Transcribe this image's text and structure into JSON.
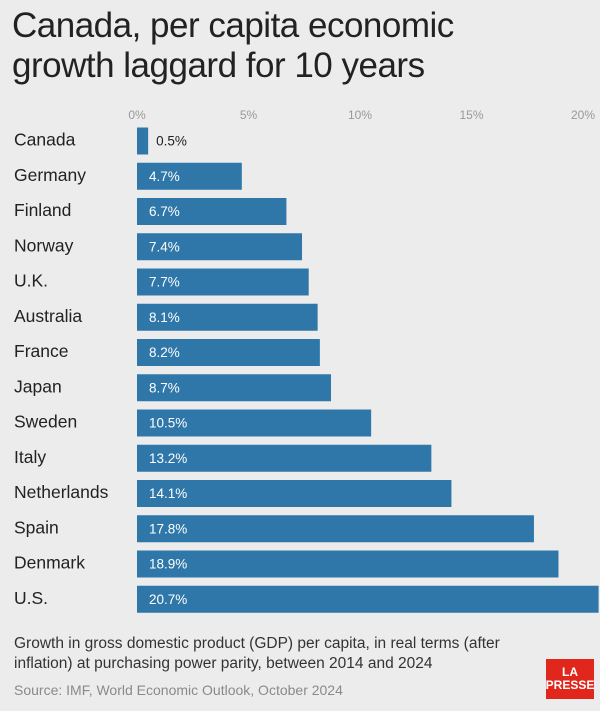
{
  "chart_data": {
    "type": "hbar",
    "title": "Canada, per capita economic growth laggard for 10 years",
    "categories": [
      "Canada",
      "Germany",
      "Finland",
      "Norway",
      "U.K.",
      "Australia",
      "France",
      "Japan",
      "Sweden",
      "Italy",
      "Netherlands",
      "Spain",
      "Denmark",
      "U.S."
    ],
    "values": [
      0.5,
      4.7,
      6.7,
      7.4,
      7.7,
      8.1,
      8.2,
      8.7,
      10.5,
      13.2,
      14.1,
      17.8,
      18.9,
      20.7
    ],
    "value_labels": [
      "0.5%",
      "4.7%",
      "6.7%",
      "7.4%",
      "7.7%",
      "8.1%",
      "8.2%",
      "8.7%",
      "10.5%",
      "13.2%",
      "14.1%",
      "17.8%",
      "18.9%",
      "20.7%"
    ],
    "color": "#2f77a9",
    "xlim": [
      0,
      20
    ],
    "xticks": [
      {
        "value": 0,
        "label": "0%"
      },
      {
        "value": 5,
        "label": "5%"
      },
      {
        "value": 10,
        "label": "10%"
      },
      {
        "value": 15,
        "label": "15%"
      },
      {
        "value": 20,
        "label": "20%"
      }
    ],
    "grid": false,
    "note": "Growth in gross domestic product (GDP) per capita, in real terms (after inflation) at purchasing power parity, between 2014 and 2024",
    "source": "Source: IMF, World Economic Outlook, October 2024",
    "brand": [
      "LA",
      "PRESSE"
    ]
  }
}
